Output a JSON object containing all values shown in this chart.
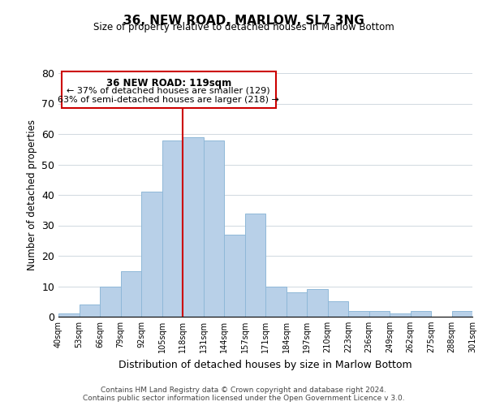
{
  "title": "36, NEW ROAD, MARLOW, SL7 3NG",
  "subtitle": "Size of property relative to detached houses in Marlow Bottom",
  "xlabel": "Distribution of detached houses by size in Marlow Bottom",
  "ylabel": "Number of detached properties",
  "footer1": "Contains HM Land Registry data © Crown copyright and database right 2024.",
  "footer2": "Contains public sector information licensed under the Open Government Licence v 3.0.",
  "bin_labels": [
    "40sqm",
    "53sqm",
    "66sqm",
    "79sqm",
    "92sqm",
    "105sqm",
    "118sqm",
    "131sqm",
    "144sqm",
    "157sqm",
    "171sqm",
    "184sqm",
    "197sqm",
    "210sqm",
    "223sqm",
    "236sqm",
    "249sqm",
    "262sqm",
    "275sqm",
    "288sqm",
    "301sqm"
  ],
  "bar_heights": [
    1,
    4,
    10,
    15,
    41,
    58,
    59,
    58,
    27,
    34,
    10,
    8,
    9,
    5,
    2,
    2,
    1,
    2,
    0,
    2
  ],
  "bar_color": "#b8d0e8",
  "bar_edge_color": "#8fb8d8",
  "vline_x_idx": 6,
  "vline_color": "#cc0000",
  "ylim": [
    0,
    80
  ],
  "yticks": [
    0,
    10,
    20,
    30,
    40,
    50,
    60,
    70,
    80
  ],
  "annotation_title": "36 NEW ROAD: 119sqm",
  "annotation_line1": "← 37% of detached houses are smaller (129)",
  "annotation_line2": "63% of semi-detached houses are larger (218) →",
  "footer1_text": "Contains HM Land Registry data © Crown copyright and database right 2024.",
  "footer2_text": "Contains public sector information licensed under the Open Government Licence v 3.0."
}
